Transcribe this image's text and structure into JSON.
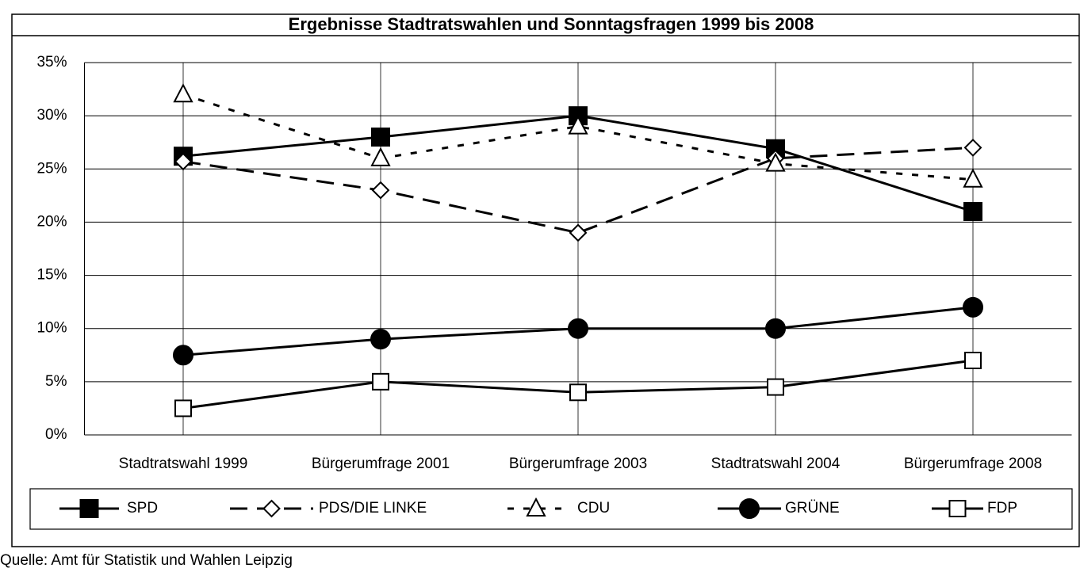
{
  "chart_data": {
    "type": "line",
    "title": "Ergebnisse Stadtratswahlen und Sonntagsfragen 1999 bis 2008",
    "source": "Quelle: Amt für Statistik und Wahlen Leipzig",
    "categories": [
      "Stadtratswahl 1999",
      "Bürgerumfrage 2001",
      "Bürgerumfrage 2003",
      "Stadtratswahl 2004",
      "Bürgerumfrage 2008"
    ],
    "series": [
      {
        "name": "SPD",
        "color": "#000000",
        "dash": "solid",
        "marker": "square",
        "marker_fill": "#000000",
        "values": [
          26.2,
          28,
          30,
          26.9,
          21
        ]
      },
      {
        "name": "PDS/DIE LINKE",
        "color": "#000000",
        "dash": "long-dash",
        "marker": "diamond",
        "marker_fill": "#ffffff",
        "values": [
          25.7,
          23,
          19,
          26,
          27
        ]
      },
      {
        "name": "CDU",
        "color": "#000000",
        "dash": "short-dash",
        "marker": "triangle",
        "marker_fill": "#ffffff",
        "values": [
          32,
          26,
          29,
          25.5,
          24
        ]
      },
      {
        "name": "GRÜNE",
        "color": "#000000",
        "dash": "solid",
        "marker": "circle",
        "marker_fill": "#000000",
        "values": [
          7.5,
          9,
          10,
          10,
          12
        ]
      },
      {
        "name": "FDP",
        "color": "#000000",
        "dash": "solid",
        "marker": "square",
        "marker_fill": "#ffffff",
        "values": [
          2.5,
          5,
          4,
          4.5,
          7
        ]
      }
    ],
    "ylim": [
      0,
      35
    ],
    "yticks": [
      {
        "value": 0,
        "label": "0%"
      },
      {
        "value": 5,
        "label": "5%"
      },
      {
        "value": 10,
        "label": "10%"
      },
      {
        "value": 15,
        "label": "15%"
      },
      {
        "value": 20,
        "label": "20%"
      },
      {
        "value": 25,
        "label": "25%"
      },
      {
        "value": 30,
        "label": "30%"
      },
      {
        "value": 35,
        "label": "35%"
      }
    ],
    "grid": true,
    "legend": "bottom"
  }
}
